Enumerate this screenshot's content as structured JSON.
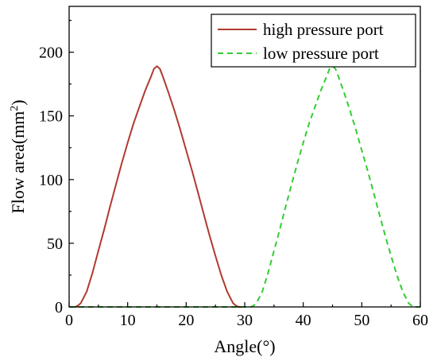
{
  "chart_data": {
    "type": "line",
    "title": "",
    "xlabel": "Angle(°)",
    "ylabel_main": "Flow area(mm",
    "ylabel_sup": "2",
    "ylabel_tail": ")",
    "xlim": [
      0,
      60
    ],
    "ylim": [
      0,
      236
    ],
    "xticks": [
      0,
      10,
      20,
      30,
      40,
      50,
      60
    ],
    "yticks": [
      0,
      50,
      100,
      150,
      200
    ],
    "grid": false,
    "legend_position": "top-right",
    "series": [
      {
        "name": "high pressure port",
        "color": "#b03a2e",
        "dash": "solid",
        "x": [
          0,
          1,
          1.5,
          2,
          3,
          4,
          5,
          6,
          7,
          8,
          9,
          10,
          11,
          12,
          13,
          14,
          14.5,
          15,
          15.5,
          16,
          17,
          18,
          19,
          20,
          21,
          22,
          23,
          24,
          25,
          26,
          27,
          28,
          28.5,
          29,
          30
        ],
        "y": [
          0,
          0,
          1,
          3,
          12,
          27,
          44,
          61,
          79,
          96,
          113,
          129,
          144,
          157,
          170,
          181,
          187,
          189,
          187,
          181,
          168,
          154,
          139,
          123,
          107,
          90,
          73,
          56,
          40,
          25,
          12,
          3,
          1,
          0,
          0
        ]
      },
      {
        "name": "low pressure port",
        "color": "#33cc33",
        "dash": "dashed",
        "x": [
          0,
          30,
          31,
          31.5,
          32,
          33,
          34,
          35,
          36,
          37,
          38,
          39,
          40,
          41,
          42,
          43,
          44,
          44.5,
          45,
          45.5,
          46,
          47,
          48,
          49,
          50,
          51,
          52,
          53,
          54,
          55,
          56,
          57,
          58,
          58.5,
          59,
          60
        ],
        "y": [
          0,
          0,
          0,
          1,
          3,
          12,
          27,
          44,
          61,
          79,
          96,
          113,
          129,
          144,
          157,
          170,
          181,
          187,
          189,
          187,
          181,
          168,
          154,
          139,
          123,
          107,
          90,
          73,
          56,
          40,
          25,
          12,
          3,
          1,
          0,
          0
        ]
      }
    ]
  }
}
